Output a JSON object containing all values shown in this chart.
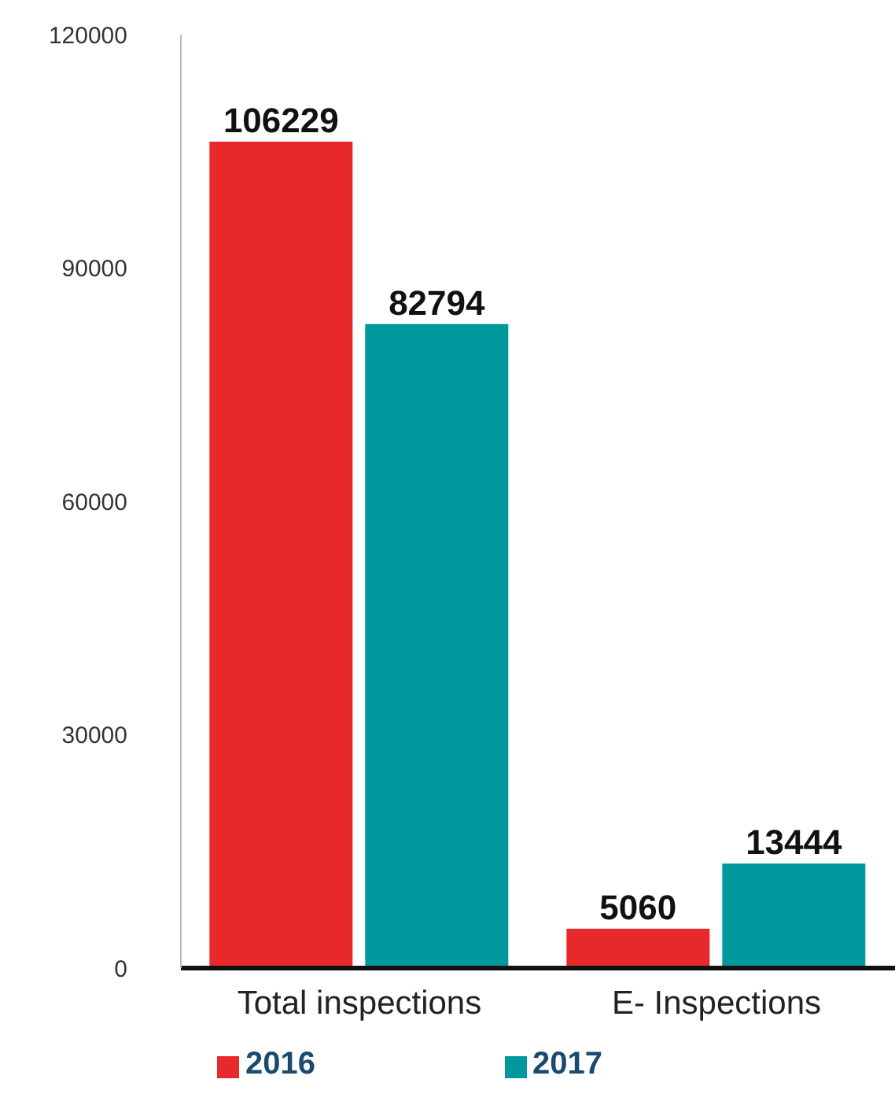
{
  "chart_data": {
    "type": "bar",
    "categories": [
      "Total inspections",
      "E- Inspections"
    ],
    "series": [
      {
        "name": "2016",
        "color": "#e8292c",
        "values": [
          106229,
          5060
        ]
      },
      {
        "name": "2017",
        "color": "#00979d",
        "values": [
          82794,
          13444
        ]
      }
    ],
    "ylim": [
      0,
      120000
    ],
    "yticks": [
      0,
      30000,
      60000,
      90000,
      120000
    ],
    "grid": false,
    "legend": "bottom left",
    "data_labels": true
  }
}
